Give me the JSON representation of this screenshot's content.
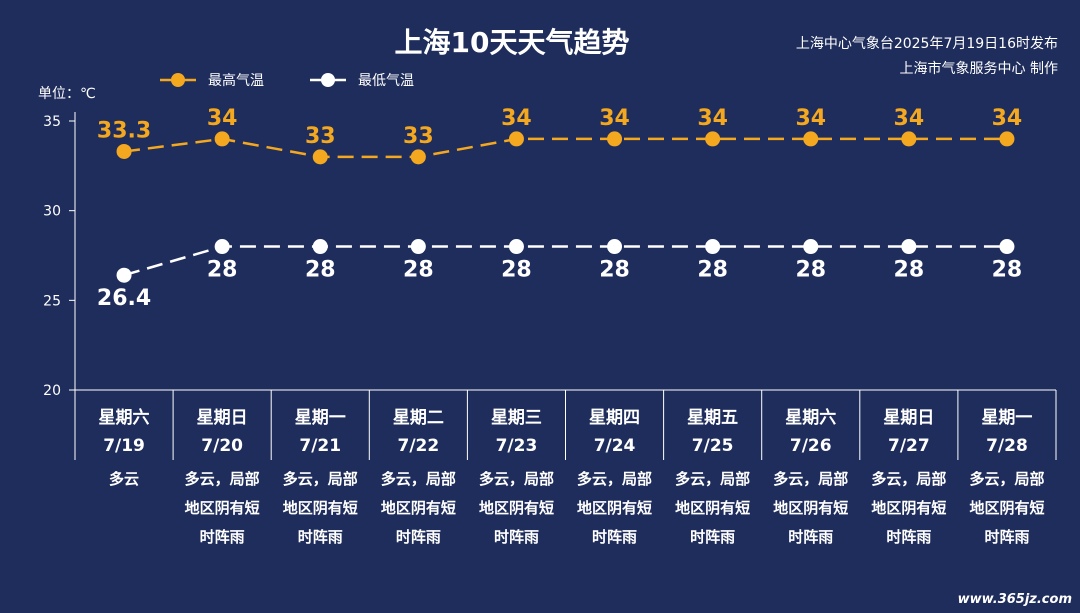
{
  "title": "上海10天天气趋势",
  "info": {
    "line1": "上海中心气象台2025年7月19日16时发布",
    "line2": "上海市气象服务中心 制作"
  },
  "unit_label": "单位：℃",
  "watermark": "www.365jz.com",
  "colors": {
    "background": "#1f2d5c",
    "high": "#f4a81f",
    "low": "#ffffff"
  },
  "chart_data": {
    "type": "line",
    "title": "上海10天天气趋势",
    "ylabel": "单位：℃",
    "ylim": [
      20,
      35
    ],
    "yticks": [
      "20",
      "25",
      "30",
      "35"
    ],
    "legend_position": "top-left",
    "categories": [
      "7/19",
      "7/20",
      "7/21",
      "7/22",
      "7/23",
      "7/24",
      "7/25",
      "7/26",
      "7/27",
      "7/28"
    ],
    "weekdays": [
      "星期六",
      "星期日",
      "星期一",
      "星期二",
      "星期三",
      "星期四",
      "星期五",
      "星期六",
      "星期日",
      "星期一"
    ],
    "weather": [
      [
        "多云"
      ],
      [
        "多云，局部",
        "地区阴有短",
        "时阵雨"
      ],
      [
        "多云，局部",
        "地区阴有短",
        "时阵雨"
      ],
      [
        "多云，局部",
        "地区阴有短",
        "时阵雨"
      ],
      [
        "多云，局部",
        "地区阴有短",
        "时阵雨"
      ],
      [
        "多云，局部",
        "地区阴有短",
        "时阵雨"
      ],
      [
        "多云，局部",
        "地区阴有短",
        "时阵雨"
      ],
      [
        "多云，局部",
        "地区阴有短",
        "时阵雨"
      ],
      [
        "多云，局部",
        "地区阴有短",
        "时阵雨"
      ],
      [
        "多云，局部",
        "地区阴有短",
        "时阵雨"
      ]
    ],
    "series": [
      {
        "name": "最高气温",
        "values": [
          33.3,
          34,
          33,
          33,
          34,
          34,
          34,
          34,
          34,
          34
        ],
        "labels": [
          "33.3",
          "34",
          "33",
          "33",
          "34",
          "34",
          "34",
          "34",
          "34",
          "34"
        ]
      },
      {
        "name": "最低气温",
        "values": [
          26.4,
          28,
          28,
          28,
          28,
          28,
          28,
          28,
          28,
          28
        ],
        "labels": [
          "26.4",
          "28",
          "28",
          "28",
          "28",
          "28",
          "28",
          "28",
          "28",
          "28"
        ]
      }
    ]
  }
}
